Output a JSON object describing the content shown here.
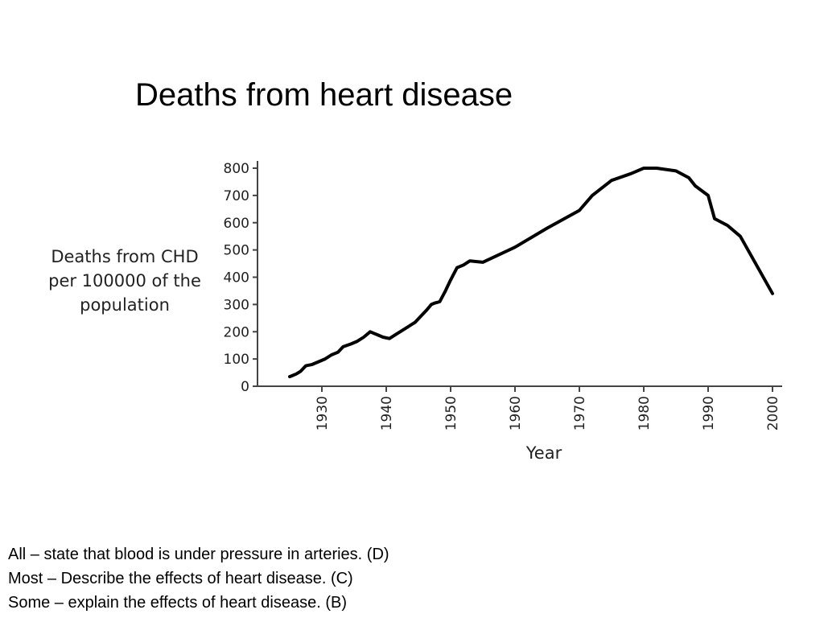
{
  "slide": {
    "title": "Deaths from heart disease",
    "notes": [
      "All – state that blood is under pressure in arteries. (D)",
      "Most – Describe the effects of heart disease. (C)",
      "Some – explain the effects of heart disease. (B)"
    ]
  },
  "chart_data": {
    "type": "line",
    "title": "",
    "xlabel": "Year",
    "ylabel": "Deaths from CHD per 100000 of the population",
    "xlim": [
      1920,
      2000
    ],
    "ylim": [
      0,
      800
    ],
    "x_ticks": [
      1930,
      1940,
      1950,
      1960,
      1970,
      1980,
      1990,
      2000
    ],
    "y_ticks": [
      0,
      100,
      200,
      300,
      400,
      500,
      600,
      700,
      800
    ],
    "grid": false,
    "series": [
      {
        "x": [
          1925,
          1926,
          1926.7,
          1927.5,
          1928.5,
          1929.5,
          1930.5,
          1931.5,
          1932.5,
          1933.3,
          1934.5,
          1935.5,
          1936.5,
          1937.5,
          1938.5,
          1939.5,
          1940.5,
          1941.5,
          1942.5,
          1943.5,
          1944.5,
          1945.5,
          1946.3,
          1947,
          1947.5,
          1948.3,
          1949.2,
          1950,
          1951,
          1952,
          1953,
          1955,
          1960,
          1965,
          1970,
          1972,
          1975,
          1978,
          1980,
          1982,
          1985,
          1987,
          1988,
          1990,
          1991,
          1993,
          1995,
          2000
        ],
        "y": [
          35,
          45,
          55,
          75,
          80,
          90,
          100,
          115,
          125,
          145,
          155,
          165,
          180,
          200,
          190,
          180,
          175,
          190,
          205,
          220,
          235,
          260,
          280,
          300,
          305,
          310,
          350,
          390,
          435,
          445,
          460,
          455,
          510,
          580,
          645,
          700,
          755,
          780,
          800,
          800,
          790,
          765,
          735,
          700,
          615,
          590,
          550,
          340
        ]
      }
    ]
  }
}
